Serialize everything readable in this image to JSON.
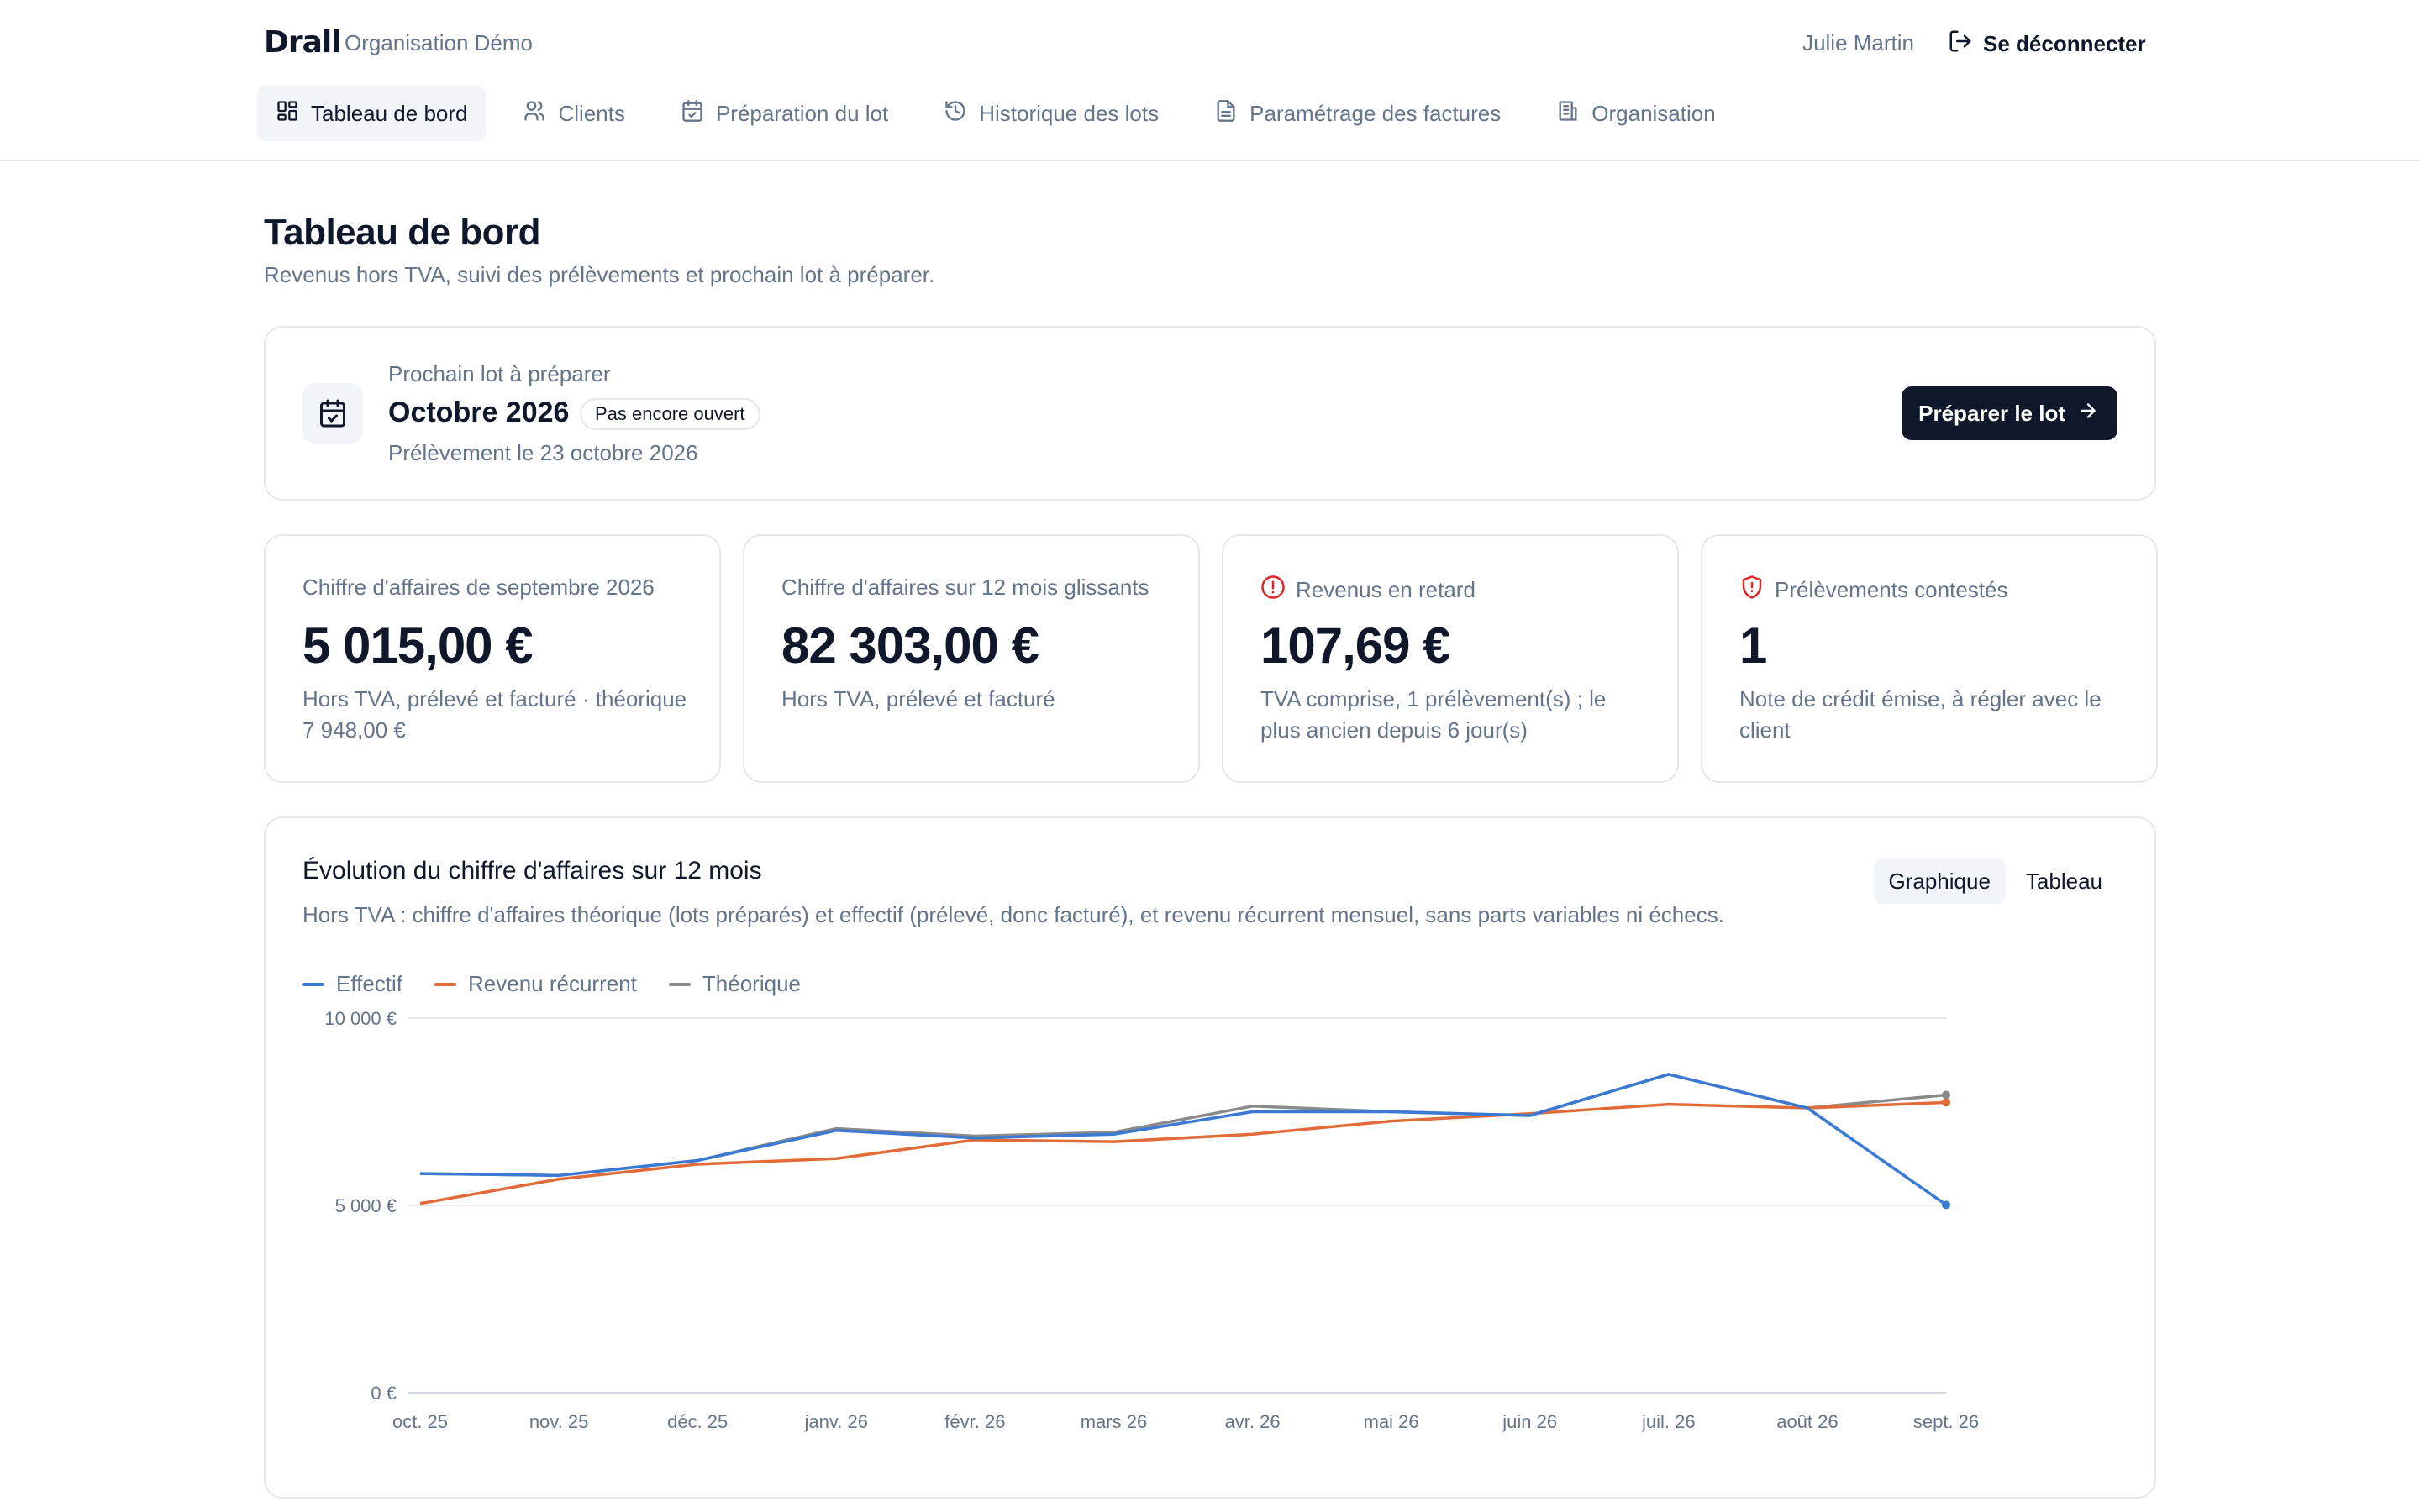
{
  "header": {
    "brand": "Drall",
    "organisation": "Organisation Démo",
    "user": "Julie Martin",
    "logout_label": "Se déconnecter"
  },
  "nav": {
    "items": [
      {
        "label": "Tableau de bord",
        "icon": "layout-grid-icon",
        "active": true
      },
      {
        "label": "Clients",
        "icon": "users-icon",
        "active": false
      },
      {
        "label": "Préparation du lot",
        "icon": "calendar-check-icon",
        "active": false
      },
      {
        "label": "Historique des lots",
        "icon": "history-icon",
        "active": false
      },
      {
        "label": "Paramétrage des factures",
        "icon": "file-text-icon",
        "active": false
      },
      {
        "label": "Organisation",
        "icon": "building-icon",
        "active": false
      }
    ]
  },
  "page": {
    "title": "Tableau de bord",
    "subtitle": "Revenus hors TVA, suivi des prélèvements et prochain lot à préparer."
  },
  "next_lot": {
    "label": "Prochain lot à préparer",
    "title": "Octobre 2026",
    "badge": "Pas encore ouvert",
    "date": "Prélèvement le 23 octobre 2026",
    "button_label": "Préparer le lot"
  },
  "stats": [
    {
      "label": "Chiffre d'affaires de septembre 2026",
      "value": "5 015,00 €",
      "note": "Hors TVA, prélevé et facturé · théorique 7 948,00 €",
      "icon": null
    },
    {
      "label": "Chiffre d'affaires sur 12 mois glissants",
      "value": "82 303,00 €",
      "note": "Hors TVA, prélevé et facturé",
      "icon": null
    },
    {
      "label": "Revenus en retard",
      "value": "107,69 €",
      "note": "TVA comprise, 1 prélèvement(s) ; le plus ancien depuis 6 jour(s)",
      "icon": "alert-circle-icon"
    },
    {
      "label": "Prélèvements contestés",
      "value": "1",
      "note": "Note de crédit émise, à régler avec le client",
      "icon": "shield-alert-icon"
    }
  ],
  "chart_section": {
    "title": "Évolution du chiffre d'affaires sur 12 mois",
    "description": "Hors TVA : chiffre d'affaires théorique (lots préparés) et effectif (prélevé, donc facturé), et revenu récurrent mensuel, sans parts variables ni échecs.",
    "toggle": [
      "Graphique",
      "Tableau"
    ],
    "toggle_active": 0
  },
  "chart_data": {
    "type": "line",
    "x": [
      "oct. 25",
      "nov. 25",
      "déc. 25",
      "janv. 26",
      "févr. 26",
      "mars 26",
      "avr. 26",
      "mai 26",
      "juin 26",
      "juil. 26",
      "août 26",
      "sept. 26"
    ],
    "series": [
      {
        "name": "Effectif",
        "color": "#3b7ad3",
        "values": [
          5850,
          5800,
          6200,
          7000,
          6800,
          6900,
          7500,
          7500,
          7400,
          8500,
          7600,
          5015
        ]
      },
      {
        "name": "Revenu récurrent",
        "color": "#e06c39",
        "values": [
          5050,
          5700,
          6100,
          6250,
          6750,
          6700,
          6900,
          7250,
          7450,
          7700,
          7600,
          7750
        ]
      },
      {
        "name": "Théorique",
        "color": "#8a8a8a",
        "values": [
          5850,
          5800,
          6200,
          7050,
          6850,
          6950,
          7650,
          7500,
          7400,
          8500,
          7600,
          7948
        ]
      }
    ],
    "yticks": [
      "0 €",
      "5 000 €",
      "10 000 €"
    ],
    "ylim": [
      0,
      10000
    ],
    "grid": true,
    "legend": "top-left"
  }
}
